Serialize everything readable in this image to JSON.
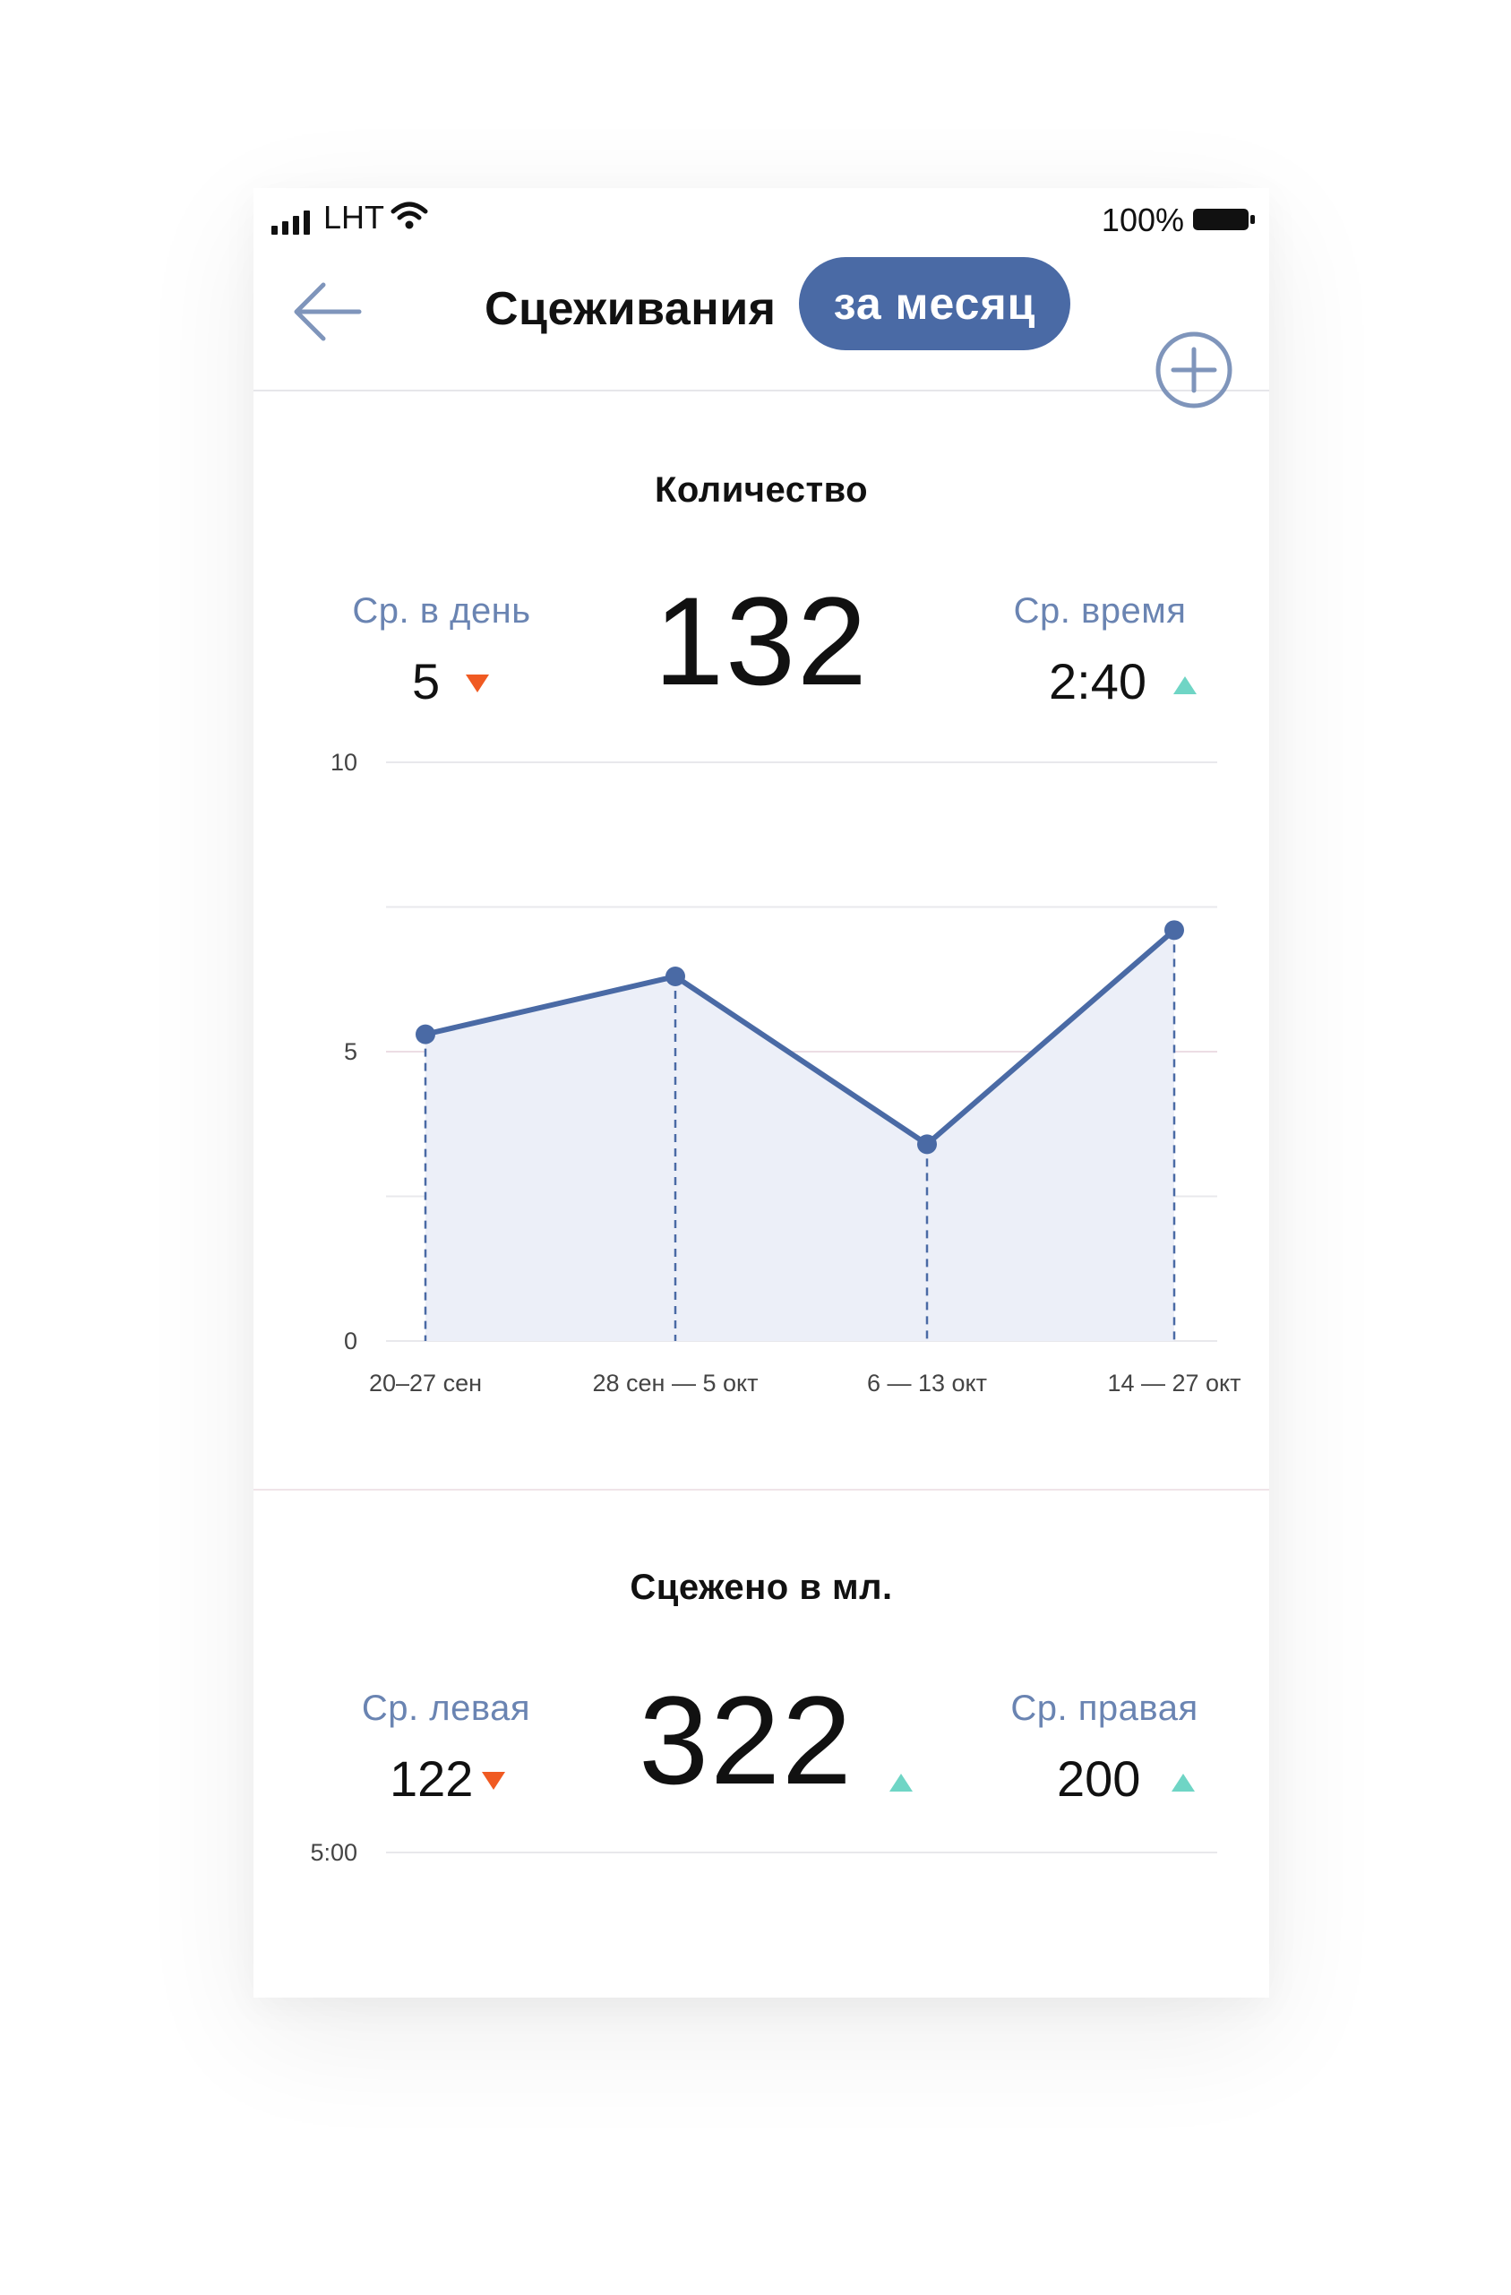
{
  "status_bar": {
    "carrier": "LHT",
    "battery_percent": "100%"
  },
  "nav": {
    "title": "Сцеживания",
    "period": "за месяц",
    "back_icon": "arrow-left-icon",
    "add_icon": "plus-circle-icon"
  },
  "count_section": {
    "title": "Количество",
    "avg_per_day_label": "Ср. в день",
    "avg_per_day_value": "5",
    "avg_per_day_trend": "down",
    "total": "132",
    "avg_time_label": "Ср. время",
    "avg_time_value": "2:40",
    "avg_time_trend": "up"
  },
  "volume_section": {
    "title": "Сцежено в мл.",
    "avg_left_label": "Ср. левая",
    "avg_left_value": "122",
    "avg_left_trend": "down",
    "total": "322",
    "total_trend": "up",
    "avg_right_label": "Ср. правая",
    "avg_right_value": "200",
    "avg_right_trend": "up",
    "axis_top_label": "5:00"
  },
  "colors": {
    "accent": "#4a6aa5",
    "label": "#6a84b2",
    "trend_down": "#f05a22",
    "trend_up": "#6fd5c5",
    "area_fill": "#eceff8"
  },
  "chart_data": {
    "type": "area",
    "categories": [
      "20–27 сен",
      "28 сен — 5 окт",
      "6 — 13 окт",
      "14 — 27 окт"
    ],
    "values": [
      5.3,
      6.3,
      3.4,
      7.1
    ],
    "y_ticks": [
      "0",
      "5",
      "10"
    ],
    "ylim": [
      0,
      10
    ],
    "grid": true,
    "xlabel": "",
    "ylabel": ""
  }
}
